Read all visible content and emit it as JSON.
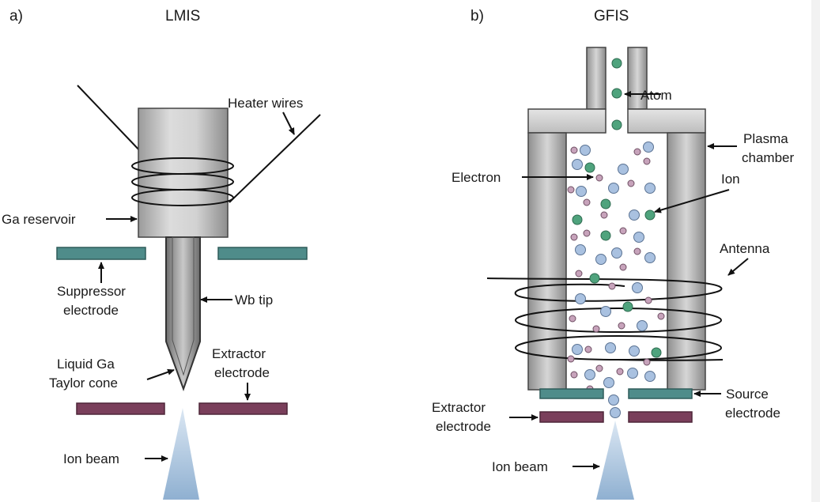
{
  "panels": {
    "a": {
      "letter": "a)",
      "title": "LMIS",
      "labels": {
        "heater_wires": "Heater wires",
        "ga_reservoir": "Ga reservoir",
        "suppressor_line1": "Suppressor",
        "suppressor_line2": "electrode",
        "wb_tip": "Wb tip",
        "liquid_line1": "Liquid Ga",
        "liquid_line2": "Taylor cone",
        "extractor_line1": "Extractor",
        "extractor_line2": "electrode",
        "ion_beam": "Ion beam"
      }
    },
    "b": {
      "letter": "b)",
      "title": "GFIS",
      "labels": {
        "atom": "Atom",
        "plasma_line1": "Plasma",
        "plasma_line2": "chamber",
        "electron": "Electron",
        "ion": "Ion",
        "antenna": "Antenna",
        "source_line1": "Source",
        "source_line2": "electrode",
        "extractor_line1": "Extractor",
        "extractor_line2": "electrode",
        "ion_beam": "Ion beam"
      }
    }
  },
  "colors": {
    "electrode_teal": "#4f8c8a",
    "electrode_purple": "#7a3f5b",
    "ion_blue": "#a9c1e0",
    "atom_green": "#4fa37d",
    "electron_pink": "#c7a3bb",
    "beam_blue": "#8fb0d1"
  }
}
